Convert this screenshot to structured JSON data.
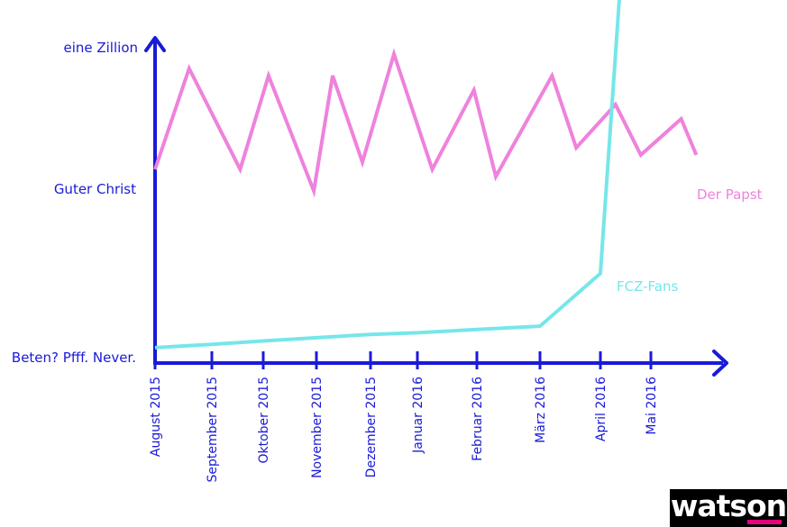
{
  "chart_data": {
    "type": "line",
    "title": "",
    "xlabel": "",
    "ylabel": "",
    "categories": [
      "August 2015",
      "September 2015",
      "Oktober 2015",
      "November 2015",
      "Dezember 2015",
      "Januar 2016",
      "Februar 2016",
      "März 2016",
      "April 2016",
      "Mai 2016"
    ],
    "y_levels": [
      "Beten? Pfff. Never.",
      "Guter Christ",
      "eine Zillion"
    ],
    "series": [
      {
        "name": "Der Papst",
        "color": "#ee82dc",
        "points": [
          [
            0,
            1.15
          ],
          [
            0.6,
            1.85
          ],
          [
            1.55,
            1.15
          ],
          [
            2.1,
            1.8
          ],
          [
            2.95,
            1.0
          ],
          [
            3.3,
            1.8
          ],
          [
            3.85,
            1.2
          ],
          [
            4.5,
            1.95
          ],
          [
            5.25,
            1.15
          ],
          [
            5.95,
            1.7
          ],
          [
            6.3,
            1.1
          ],
          [
            7.2,
            1.8
          ],
          [
            7.6,
            1.3
          ],
          [
            8.3,
            1.6
          ],
          [
            8.8,
            1.25
          ],
          [
            9.6,
            1.5
          ],
          [
            9.9,
            1.25
          ]
        ]
      },
      {
        "name": "FCZ-Fans",
        "color": "#76e6ea",
        "points": [
          [
            0,
            0.05
          ],
          [
            1,
            0.07
          ],
          [
            2,
            0.09
          ],
          [
            3,
            0.11
          ],
          [
            4,
            0.13
          ],
          [
            5,
            0.14
          ],
          [
            6,
            0.16
          ],
          [
            7,
            0.18
          ],
          [
            8,
            0.5
          ],
          [
            8.9,
            5.0
          ]
        ]
      }
    ]
  },
  "logo": {
    "text": "watson"
  }
}
